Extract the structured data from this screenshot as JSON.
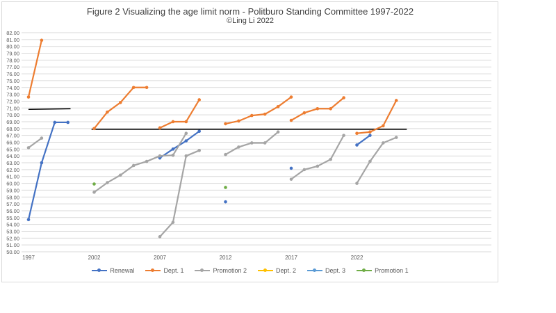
{
  "chart_data": {
    "type": "line",
    "title": "Figure 2 Visualizing the age limit norm - Politburo Standing Committee 1997-2022",
    "subtitle": "©Ling Li 2022",
    "ylim": [
      50,
      82
    ],
    "ytick_step": 1,
    "xlim": [
      1997,
      2025
    ],
    "xtick_labels": [
      "1997",
      "2002",
      "2007",
      "2012",
      "2017",
      "2022"
    ],
    "grid": true,
    "legend_position": "bottom",
    "reference_lines": [
      {
        "color": "#000000",
        "x": [
          1997,
          2000.2
        ],
        "y": [
          70.8,
          70.9
        ]
      },
      {
        "color": "#000000",
        "x": [
          2001.8,
          2025.8
        ],
        "y": [
          67.9,
          67.9
        ]
      }
    ],
    "series": [
      {
        "name": "Renewal",
        "color": "#4472c4",
        "segments": [
          {
            "x": [
              1997,
              1998,
              1999,
              2000
            ],
            "y": [
              54.7,
              63.0,
              68.9,
              68.9
            ]
          },
          {
            "x": [
              2007,
              2008,
              2009,
              2010
            ],
            "y": [
              63.7,
              65.0,
              66.2,
              67.6
            ]
          },
          {
            "x": [
              2012
            ],
            "y": [
              57.3
            ]
          },
          {
            "x": [
              2017
            ],
            "y": [
              62.2
            ]
          },
          {
            "x": [
              2022,
              2023
            ],
            "y": [
              65.6,
              67.0
            ]
          }
        ]
      },
      {
        "name": "Dept. 1",
        "color": "#ed7d31",
        "segments": [
          {
            "x": [
              1997,
              1998
            ],
            "y": [
              72.6,
              80.9
            ]
          },
          {
            "x": [
              2002,
              2003,
              2004,
              2005,
              2006
            ],
            "y": [
              68.0,
              70.4,
              71.8,
              74.0,
              74.0
            ]
          },
          {
            "x": [
              2007,
              2008,
              2009,
              2010
            ],
            "y": [
              68.1,
              69.0,
              69.0,
              72.2
            ]
          },
          {
            "x": [
              2012,
              2013,
              2014,
              2015,
              2016,
              2017
            ],
            "y": [
              68.7,
              69.1,
              69.9,
              70.1,
              71.2,
              72.6
            ]
          },
          {
            "x": [
              2017,
              2018,
              2019,
              2020,
              2021
            ],
            "y": [
              69.2,
              70.3,
              70.9,
              70.9,
              72.5
            ]
          },
          {
            "x": [
              2022,
              2023,
              2024,
              2025
            ],
            "y": [
              67.3,
              67.5,
              68.4,
              72.1
            ]
          }
        ]
      },
      {
        "name": "Promotion 2",
        "color": "#a5a5a5",
        "segments": [
          {
            "x": [
              1997,
              1998
            ],
            "y": [
              65.2,
              66.6
            ]
          },
          {
            "x": [
              2002,
              2003,
              2004,
              2005,
              2006,
              2007,
              2008
            ],
            "y": [
              58.7,
              60.1,
              61.2,
              62.6,
              63.2,
              64.0,
              64.1
            ]
          },
          {
            "x": [
              2008,
              2009
            ],
            "y": [
              64.1,
              67.3
            ]
          },
          {
            "x": [
              2007,
              2008,
              2009,
              2010
            ],
            "y": [
              52.2,
              54.3,
              64.0,
              64.8
            ]
          },
          {
            "x": [
              2012,
              2013,
              2014,
              2015,
              2016
            ],
            "y": [
              64.2,
              65.3,
              65.9,
              65.9,
              67.5
            ]
          },
          {
            "x": [
              2017,
              2018,
              2019,
              2020,
              2021
            ],
            "y": [
              60.6,
              62.0,
              62.5,
              63.5,
              67.0
            ]
          },
          {
            "x": [
              2022,
              2023,
              2024,
              2025
            ],
            "y": [
              60.0,
              63.2,
              65.9,
              66.7
            ]
          }
        ]
      },
      {
        "name": "Dept. 2",
        "color": "#ffc000",
        "segments": []
      },
      {
        "name": "Dept. 3",
        "color": "#5b9bd5",
        "segments": []
      },
      {
        "name": "Promotion 1",
        "color": "#70ad47",
        "segments": [
          {
            "x": [
              2002
            ],
            "y": [
              59.9
            ]
          },
          {
            "x": [
              2012
            ],
            "y": [
              59.4
            ]
          }
        ]
      }
    ]
  }
}
